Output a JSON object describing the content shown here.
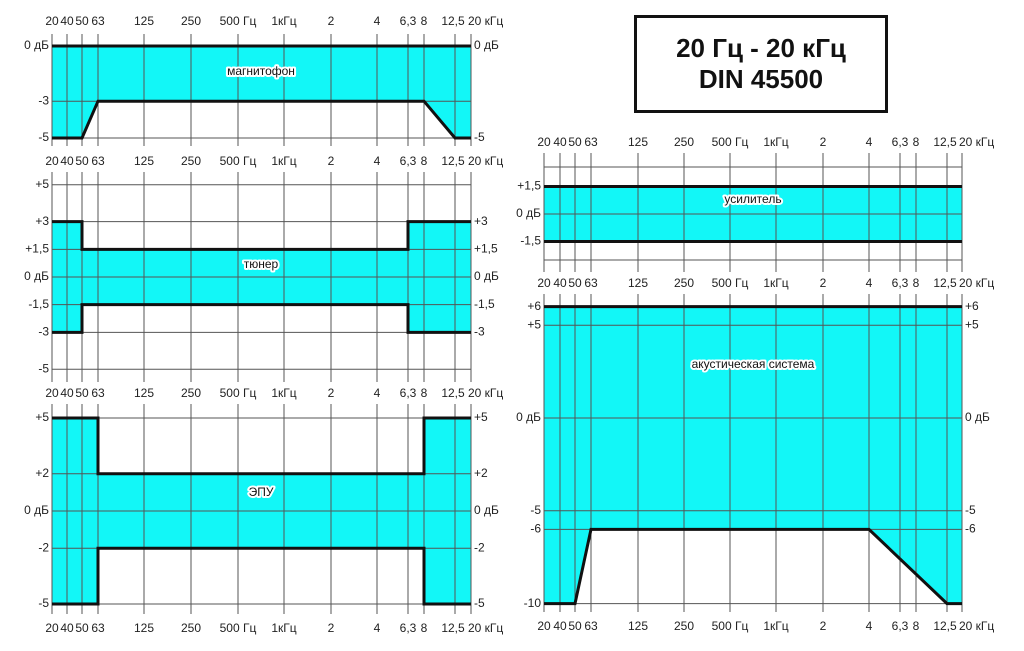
{
  "title": {
    "line1": "20 Гц - 20 кГц",
    "line2": "DIN 45500"
  },
  "colors": {
    "tolerance_fill": "#12f7f7",
    "boundary": "#111111",
    "grid": "#555555"
  },
  "chart_data": [
    {
      "type": "area",
      "label": "магнитофон",
      "x_tick_labels": [
        "20",
        "40",
        "50",
        "63",
        "125",
        "250",
        "500 Гц",
        "1кГц",
        "2",
        "4",
        "6,3",
        "8",
        "12,5",
        "20 кГц"
      ],
      "x_tick_values_hz": [
        20,
        40,
        50,
        63,
        125,
        250,
        500,
        1000,
        2000,
        4000,
        6300,
        8000,
        12500,
        20000
      ],
      "y_ticks_left": [
        {
          "v": 0,
          "t": "0 дБ"
        },
        {
          "v": -3,
          "t": "-3"
        },
        {
          "v": -5,
          "t": "-5"
        }
      ],
      "y_ticks_right": [
        {
          "v": 0,
          "t": "0 дБ"
        },
        {
          "v": -5,
          "t": "-5"
        }
      ],
      "ylim": [
        -5,
        0
      ],
      "upper": [
        [
          20,
          0
        ],
        [
          20000,
          0
        ]
      ],
      "lower": [
        [
          20,
          -5
        ],
        [
          50,
          -5
        ],
        [
          63,
          -3
        ],
        [
          8000,
          -3
        ],
        [
          12500,
          -5
        ],
        [
          20000,
          -5
        ]
      ]
    },
    {
      "type": "area",
      "label": "тюнер",
      "x_tick_labels": [
        "20",
        "40",
        "50",
        "63",
        "125",
        "250",
        "500 Гц",
        "1кГц",
        "2",
        "4",
        "6,3",
        "8",
        "12,5",
        "20 кГц"
      ],
      "x_tick_values_hz": [
        20,
        40,
        50,
        63,
        125,
        250,
        500,
        1000,
        2000,
        4000,
        6300,
        8000,
        12500,
        20000
      ],
      "y_ticks_left": [
        {
          "v": 5,
          "t": "+5"
        },
        {
          "v": 3,
          "t": "+3"
        },
        {
          "v": 1.5,
          "t": "+1,5"
        },
        {
          "v": 0,
          "t": "0 дБ"
        },
        {
          "v": -1.5,
          "t": "-1,5"
        },
        {
          "v": -3,
          "t": "-3"
        },
        {
          "v": -5,
          "t": "-5"
        }
      ],
      "y_ticks_right": [
        {
          "v": 3,
          "t": "+3"
        },
        {
          "v": 1.5,
          "t": "+1,5"
        },
        {
          "v": 0,
          "t": "0 дБ"
        },
        {
          "v": -1.5,
          "t": "-1,5"
        },
        {
          "v": -3,
          "t": "-3"
        }
      ],
      "ylim": [
        -5,
        5
      ],
      "upper": [
        [
          20,
          3
        ],
        [
          50,
          3
        ],
        [
          50,
          1.5
        ],
        [
          6300,
          1.5
        ],
        [
          6300,
          3
        ],
        [
          20000,
          3
        ]
      ],
      "lower": [
        [
          20,
          -3
        ],
        [
          50,
          -3
        ],
        [
          50,
          -1.5
        ],
        [
          6300,
          -1.5
        ],
        [
          6300,
          -3
        ],
        [
          20000,
          -3
        ]
      ]
    },
    {
      "type": "area",
      "label": "ЭПУ",
      "x_tick_labels": [
        "20",
        "40",
        "50",
        "63",
        "125",
        "250",
        "500 Гц",
        "1кГц",
        "2",
        "4",
        "6,3",
        "8",
        "12,5",
        "20 кГц"
      ],
      "x_tick_values_hz": [
        20,
        40,
        50,
        63,
        125,
        250,
        500,
        1000,
        2000,
        4000,
        6300,
        8000,
        12500,
        20000
      ],
      "y_ticks_left": [
        {
          "v": 5,
          "t": "+5"
        },
        {
          "v": 2,
          "t": "+2"
        },
        {
          "v": 0,
          "t": "0 дБ"
        },
        {
          "v": -2,
          "t": "-2"
        },
        {
          "v": -5,
          "t": "-5"
        }
      ],
      "y_ticks_right": [
        {
          "v": 5,
          "t": "+5"
        },
        {
          "v": 2,
          "t": "+2"
        },
        {
          "v": 0,
          "t": "0 дБ"
        },
        {
          "v": -2,
          "t": "-2"
        },
        {
          "v": -5,
          "t": "-5"
        }
      ],
      "ylim": [
        -5,
        5
      ],
      "upper": [
        [
          20,
          5
        ],
        [
          63,
          5
        ],
        [
          63,
          2
        ],
        [
          8000,
          2
        ],
        [
          8000,
          5
        ],
        [
          20000,
          5
        ]
      ],
      "lower": [
        [
          20,
          -5
        ],
        [
          63,
          -5
        ],
        [
          63,
          -2
        ],
        [
          8000,
          -2
        ],
        [
          8000,
          -5
        ],
        [
          20000,
          -5
        ]
      ]
    },
    {
      "type": "area",
      "label": "усилитель",
      "x_tick_labels": [
        "20",
        "40",
        "50",
        "63",
        "125",
        "250",
        "500 Гц",
        "1кГц",
        "2",
        "4",
        "6,3",
        "8",
        "12,5",
        "20 кГц"
      ],
      "x_tick_values_hz": [
        20,
        40,
        50,
        63,
        125,
        250,
        500,
        1000,
        2000,
        4000,
        6300,
        8000,
        12500,
        20000
      ],
      "y_ticks_left": [
        {
          "v": 1.5,
          "t": "+1,5"
        },
        {
          "v": 0,
          "t": "0 дБ"
        },
        {
          "v": -1.5,
          "t": "-1,5"
        }
      ],
      "y_ticks_right": [],
      "ylim": [
        -2.5,
        2.5
      ],
      "upper": [
        [
          20,
          1.5
        ],
        [
          20000,
          1.5
        ]
      ],
      "lower": [
        [
          20,
          -1.5
        ],
        [
          20000,
          -1.5
        ]
      ]
    },
    {
      "type": "area",
      "label": "акустическая система",
      "x_tick_labels": [
        "20",
        "40",
        "50",
        "63",
        "125",
        "250",
        "500 Гц",
        "1кГц",
        "2",
        "4",
        "6,3",
        "8",
        "12,5",
        "20 кГц"
      ],
      "x_tick_values_hz": [
        20,
        40,
        50,
        63,
        125,
        250,
        500,
        1000,
        2000,
        4000,
        6300,
        8000,
        12500,
        20000
      ],
      "y_ticks_left": [
        {
          "v": 6,
          "t": "+6"
        },
        {
          "v": 5,
          "t": "+5"
        },
        {
          "v": 0,
          "t": "0 дБ"
        },
        {
          "v": -5,
          "t": "-5"
        },
        {
          "v": -6,
          "t": "-6"
        },
        {
          "v": -10,
          "t": "-10"
        }
      ],
      "y_ticks_right": [
        {
          "v": 6,
          "t": "+6"
        },
        {
          "v": 5,
          "t": "+5"
        },
        {
          "v": 0,
          "t": "0 дБ"
        },
        {
          "v": -5,
          "t": "-5"
        },
        {
          "v": -6,
          "t": "-6"
        }
      ],
      "ylim": [
        -10,
        6
      ],
      "upper": [
        [
          20,
          6
        ],
        [
          20000,
          6
        ]
      ],
      "lower": [
        [
          20,
          -10
        ],
        [
          50,
          -10
        ],
        [
          63,
          -6
        ],
        [
          4000,
          -6
        ],
        [
          12500,
          -10
        ],
        [
          20000,
          -10
        ]
      ]
    }
  ]
}
